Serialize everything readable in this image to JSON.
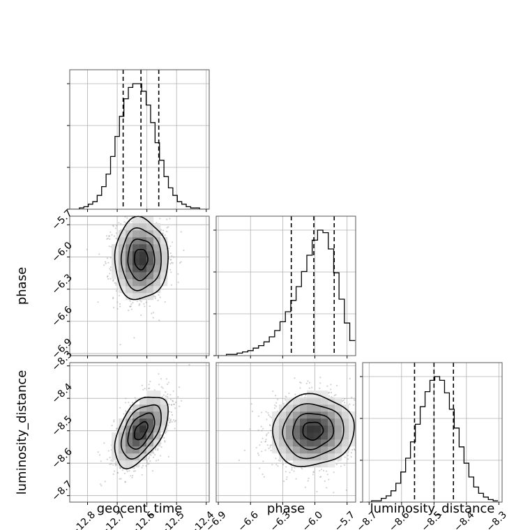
{
  "chart_data": {
    "type": "corner",
    "grid": true,
    "parameters": [
      {
        "name": "geocent_time",
        "label": "geocent_time",
        "lim": [
          -12.86,
          -12.39
        ],
        "ticks": [
          -12.8,
          -12.7,
          -12.6,
          -12.5,
          -12.4
        ],
        "tick_labels": [
          "−12.8",
          "−12.7",
          "−12.6",
          "−12.5",
          "−12.4"
        ],
        "quantiles": [
          -12.68,
          -12.62,
          -12.56
        ],
        "mean": -12.62,
        "sd": 0.045
      },
      {
        "name": "phase",
        "label": "phase",
        "lim": [
          -6.92,
          -5.62
        ],
        "ticks": [
          -6.9,
          -6.6,
          -6.3,
          -6.0,
          -5.7
        ],
        "tick_labels": [
          "−6.9",
          "−6.6",
          "−6.3",
          "−6.0",
          "−5.7"
        ],
        "quantiles": [
          -6.22,
          -6.01,
          -5.82
        ],
        "mean": -6.02,
        "sd": 0.19
      },
      {
        "name": "luminosity_distance",
        "label": "luminosity_distance",
        "lim": [
          -8.72,
          -8.29
        ],
        "ticks": [
          -8.7,
          -8.6,
          -8.5,
          -8.4,
          -8.3
        ],
        "tick_labels": [
          "−8.7",
          "−8.6",
          "−8.5",
          "−8.4",
          "−8.3"
        ],
        "quantiles": [
          -8.56,
          -8.5,
          -8.44
        ],
        "mean": -8.5,
        "sd": 0.055
      }
    ],
    "histograms": [
      {
        "parameter": "geocent_time",
        "bin_centers": [
          -12.85,
          -12.835,
          -12.82,
          -12.805,
          -12.79,
          -12.775,
          -12.76,
          -12.745,
          -12.73,
          -12.715,
          -12.7,
          -12.685,
          -12.67,
          -12.655,
          -12.64,
          -12.625,
          -12.61,
          -12.595,
          -12.58,
          -12.565,
          -12.55,
          -12.535,
          -12.52,
          -12.505,
          -12.49,
          -12.475,
          -12.46,
          -12.445,
          -12.43,
          -12.415,
          -12.4
        ],
        "counts": [
          0,
          0,
          1,
          2,
          4,
          6,
          11,
          18,
          28,
          42,
          58,
          74,
          88,
          97,
          100,
          100,
          94,
          83,
          69,
          53,
          39,
          26,
          17,
          11,
          6,
          4,
          2,
          1,
          1,
          0,
          0
        ]
      },
      {
        "parameter": "phase",
        "bin_centers": [
          -6.9,
          -6.85,
          -6.8,
          -6.75,
          -6.7,
          -6.65,
          -6.6,
          -6.55,
          -6.5,
          -6.45,
          -6.4,
          -6.35,
          -6.3,
          -6.25,
          -6.2,
          -6.15,
          -6.1,
          -6.05,
          -6.0,
          -5.95,
          -5.9,
          -5.85,
          -5.8,
          -5.75,
          -5.7,
          -5.65
        ],
        "counts": [
          0,
          0,
          1,
          1,
          2,
          3,
          4,
          6,
          8,
          11,
          15,
          20,
          27,
          35,
          44,
          55,
          67,
          80,
          92,
          100,
          98,
          85,
          66,
          45,
          26,
          12
        ]
      },
      {
        "parameter": "luminosity_distance",
        "bin_centers": [
          -8.7,
          -8.685,
          -8.67,
          -8.655,
          -8.64,
          -8.625,
          -8.61,
          -8.595,
          -8.58,
          -8.565,
          -8.55,
          -8.535,
          -8.52,
          -8.505,
          -8.49,
          -8.475,
          -8.46,
          -8.445,
          -8.43,
          -8.415,
          -8.4,
          -8.385,
          -8.37,
          -8.355,
          -8.34,
          -8.325,
          -8.31
        ],
        "counts": [
          0,
          1,
          1,
          3,
          5,
          9,
          15,
          24,
          35,
          48,
          62,
          76,
          88,
          97,
          100,
          97,
          87,
          74,
          59,
          44,
          31,
          20,
          12,
          7,
          4,
          2,
          1
        ]
      }
    ],
    "correlations": [
      {
        "x": "geocent_time",
        "y": "phase",
        "rho": 0.0
      },
      {
        "x": "geocent_time",
        "y": "luminosity_distance",
        "rho": 0.5
      },
      {
        "x": "phase",
        "y": "luminosity_distance",
        "rho": 0.05
      }
    ],
    "contour_levels_sigma": [
      0.5,
      1.0,
      1.5,
      2.0
    ],
    "colors": {
      "line": "#000000",
      "grid": "#b0b0b0",
      "points": "#9a9a9a",
      "density_max": "#333333",
      "frame": "#555555"
    }
  }
}
